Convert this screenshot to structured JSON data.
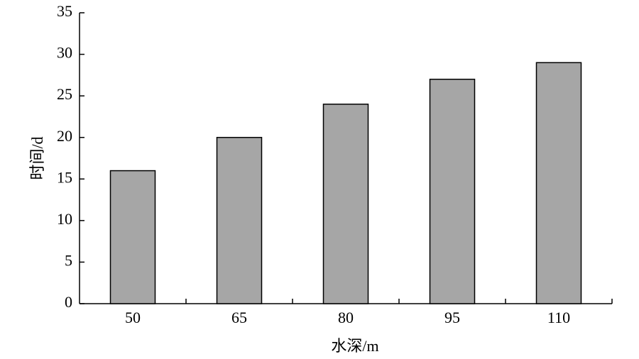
{
  "chart_data": {
    "type": "bar",
    "x_label": "水深/m",
    "y_label": "时间/d",
    "categories": [
      "50",
      "65",
      "80",
      "95",
      "110"
    ],
    "values": [
      16,
      20,
      24,
      27,
      29
    ],
    "color": "#a6a6a6",
    "ylim": [
      0,
      35
    ],
    "yticks": [
      0,
      5,
      10,
      15,
      20,
      25,
      30,
      35
    ],
    "grid": false
  }
}
